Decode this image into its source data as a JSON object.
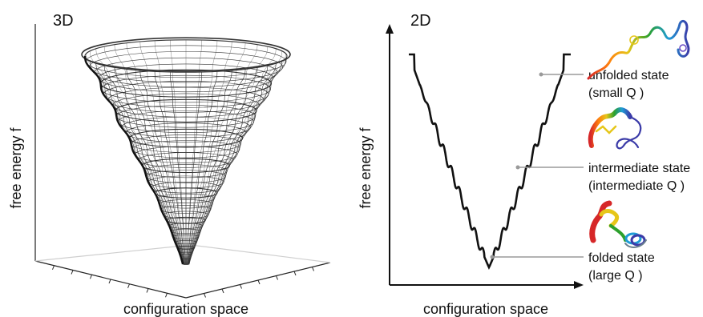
{
  "left_panel": {
    "title": "3D",
    "ylabel": "free energy f",
    "xlabel": "configuration space"
  },
  "right_panel": {
    "title": "2D",
    "ylabel": "free energy f",
    "xlabel": "configuration space",
    "annotations": [
      {
        "line1": "unfolded state",
        "line2": "(small Q )"
      },
      {
        "line1": "intermediate state",
        "line2": "(intermediate Q )"
      },
      {
        "line1": "folded state",
        "line2": "(large Q )"
      }
    ]
  },
  "colors": {
    "curve": "#111111",
    "axis": "#111111",
    "leader": "#9a9a9a",
    "mesh": "#333333"
  },
  "icons": [
    "unfolded-protein-icon",
    "intermediate-protein-icon",
    "folded-protein-icon"
  ]
}
